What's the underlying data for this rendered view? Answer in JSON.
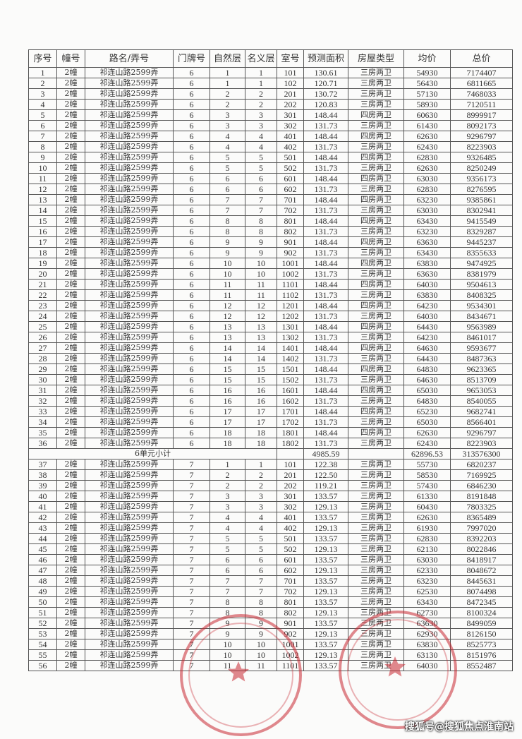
{
  "headers": [
    "序号",
    "幢号",
    "路名/弄号",
    "门牌号",
    "自然层",
    "名义层",
    "室号",
    "预测面积",
    "房屋类型",
    "均价",
    "总价"
  ],
  "rows_unit6": [
    [
      "1",
      "2幢",
      "祁连山路2599弄",
      "6",
      "1",
      "1",
      "101",
      "130.61",
      "三房两卫",
      "54930",
      "7174407"
    ],
    [
      "2",
      "2幢",
      "祁连山路2599弄",
      "6",
      "1",
      "1",
      "102",
      "120.71",
      "三房两卫",
      "56430",
      "6811665"
    ],
    [
      "3",
      "2幢",
      "祁连山路2599弄",
      "6",
      "2",
      "2",
      "201",
      "130.72",
      "三房两卫",
      "57130",
      "7468033"
    ],
    [
      "4",
      "2幢",
      "祁连山路2599弄",
      "6",
      "2",
      "2",
      "202",
      "120.83",
      "三房两卫",
      "58930",
      "7120511"
    ],
    [
      "5",
      "2幢",
      "祁连山路2599弄",
      "6",
      "3",
      "3",
      "301",
      "148.44",
      "四房两卫",
      "60630",
      "8999917"
    ],
    [
      "6",
      "2幢",
      "祁连山路2599弄",
      "6",
      "3",
      "3",
      "302",
      "131.73",
      "三房两卫",
      "61430",
      "8092173"
    ],
    [
      "7",
      "2幢",
      "祁连山路2599弄",
      "6",
      "4",
      "4",
      "401",
      "148.44",
      "四房两卫",
      "62630",
      "9296797"
    ],
    [
      "8",
      "2幢",
      "祁连山路2599弄",
      "6",
      "4",
      "4",
      "402",
      "131.73",
      "三房两卫",
      "62430",
      "8223903"
    ],
    [
      "9",
      "2幢",
      "祁连山路2599弄",
      "6",
      "5",
      "5",
      "501",
      "148.44",
      "四房两卫",
      "62830",
      "9326485"
    ],
    [
      "10",
      "2幢",
      "祁连山路2599弄",
      "6",
      "5",
      "5",
      "502",
      "131.73",
      "三房两卫",
      "62630",
      "8250249"
    ],
    [
      "11",
      "2幢",
      "祁连山路2599弄",
      "6",
      "6",
      "6",
      "601",
      "148.44",
      "四房两卫",
      "63030",
      "9356173"
    ],
    [
      "12",
      "2幢",
      "祁连山路2599弄",
      "6",
      "6",
      "6",
      "602",
      "131.73",
      "三房两卫",
      "62830",
      "8276595"
    ],
    [
      "13",
      "2幢",
      "祁连山路2599弄",
      "6",
      "7",
      "7",
      "701",
      "148.44",
      "四房两卫",
      "63230",
      "9385861"
    ],
    [
      "14",
      "2幢",
      "祁连山路2599弄",
      "6",
      "7",
      "7",
      "702",
      "131.73",
      "三房两卫",
      "63030",
      "8302941"
    ],
    [
      "15",
      "2幢",
      "祁连山路2599弄",
      "6",
      "8",
      "8",
      "801",
      "148.44",
      "四房两卫",
      "63430",
      "9415549"
    ],
    [
      "16",
      "2幢",
      "祁连山路2599弄",
      "6",
      "8",
      "8",
      "802",
      "131.73",
      "三房两卫",
      "63230",
      "8329287"
    ],
    [
      "17",
      "2幢",
      "祁连山路2599弄",
      "6",
      "9",
      "9",
      "901",
      "148.44",
      "四房两卫",
      "63630",
      "9445237"
    ],
    [
      "18",
      "2幢",
      "祁连山路2599弄",
      "6",
      "9",
      "9",
      "902",
      "131.73",
      "三房两卫",
      "63430",
      "8355633"
    ],
    [
      "19",
      "2幢",
      "祁连山路2599弄",
      "6",
      "10",
      "10",
      "1001",
      "148.44",
      "四房两卫",
      "63830",
      "9474925"
    ],
    [
      "20",
      "2幢",
      "祁连山路2599弄",
      "6",
      "10",
      "10",
      "1002",
      "131.73",
      "三房两卫",
      "63630",
      "8381979"
    ],
    [
      "21",
      "2幢",
      "祁连山路2599弄",
      "6",
      "11",
      "11",
      "1101",
      "148.44",
      "四房两卫",
      "64030",
      "9504613"
    ],
    [
      "22",
      "2幢",
      "祁连山路2599弄",
      "6",
      "11",
      "11",
      "1102",
      "131.73",
      "三房两卫",
      "63830",
      "8408325"
    ],
    [
      "23",
      "2幢",
      "祁连山路2599弄",
      "6",
      "12",
      "12",
      "1201",
      "148.44",
      "四房两卫",
      "64230",
      "9534301"
    ],
    [
      "24",
      "2幢",
      "祁连山路2599弄",
      "6",
      "12",
      "12",
      "1202",
      "131.73",
      "三房两卫",
      "64030",
      "8434671"
    ],
    [
      "25",
      "2幢",
      "祁连山路2599弄",
      "6",
      "13",
      "13",
      "1301",
      "148.44",
      "四房两卫",
      "64430",
      "9563989"
    ],
    [
      "26",
      "2幢",
      "祁连山路2599弄",
      "6",
      "13",
      "13",
      "1302",
      "131.73",
      "三房两卫",
      "64230",
      "8461017"
    ],
    [
      "27",
      "2幢",
      "祁连山路2599弄",
      "6",
      "14",
      "14",
      "1401",
      "148.44",
      "四房两卫",
      "64630",
      "9593677"
    ],
    [
      "28",
      "2幢",
      "祁连山路2599弄",
      "6",
      "14",
      "14",
      "1402",
      "131.73",
      "三房两卫",
      "64430",
      "8487363"
    ],
    [
      "29",
      "2幢",
      "祁连山路2599弄",
      "6",
      "15",
      "15",
      "1501",
      "148.44",
      "四房两卫",
      "64830",
      "9623365"
    ],
    [
      "30",
      "2幢",
      "祁连山路2599弄",
      "6",
      "15",
      "15",
      "1502",
      "131.73",
      "三房两卫",
      "64630",
      "8513709"
    ],
    [
      "31",
      "2幢",
      "祁连山路2599弄",
      "6",
      "16",
      "16",
      "1601",
      "148.44",
      "四房两卫",
      "65030",
      "9653053"
    ],
    [
      "32",
      "2幢",
      "祁连山路2599弄",
      "6",
      "16",
      "16",
      "1602",
      "131.73",
      "三房两卫",
      "64830",
      "8540055"
    ],
    [
      "33",
      "2幢",
      "祁连山路2599弄",
      "6",
      "17",
      "17",
      "1701",
      "148.44",
      "四房两卫",
      "65230",
      "9682741"
    ],
    [
      "34",
      "2幢",
      "祁连山路2599弄",
      "6",
      "17",
      "17",
      "1702",
      "131.73",
      "三房两卫",
      "65030",
      "8566401"
    ],
    [
      "35",
      "2幢",
      "祁连山路2599弄",
      "6",
      "18",
      "18",
      "1801",
      "148.44",
      "四房两卫",
      "62630",
      "9296797"
    ],
    [
      "36",
      "2幢",
      "祁连山路2599弄",
      "6",
      "18",
      "18",
      "1802",
      "131.73",
      "三房两卫",
      "62430",
      "8223903"
    ]
  ],
  "subtotal": {
    "label": "6单元小计",
    "area": "4985.59",
    "avg_price": "62896.53",
    "total_price": "313576300"
  },
  "rows_unit7": [
    [
      "37",
      "2幢",
      "祁连山路2599弄",
      "7",
      "1",
      "1",
      "101",
      "122.38",
      "三房两卫",
      "55730",
      "6820237"
    ],
    [
      "38",
      "2幢",
      "祁连山路2599弄",
      "7",
      "2",
      "2",
      "201",
      "122.50",
      "三房两卫",
      "58530",
      "7169925"
    ],
    [
      "39",
      "2幢",
      "祁连山路2599弄",
      "7",
      "2",
      "2",
      "202",
      "119.21",
      "三房两卫",
      "57430",
      "6846230"
    ],
    [
      "40",
      "2幢",
      "祁连山路2599弄",
      "7",
      "3",
      "3",
      "301",
      "133.57",
      "三房两卫",
      "61330",
      "8191848"
    ],
    [
      "41",
      "2幢",
      "祁连山路2599弄",
      "7",
      "3",
      "3",
      "302",
      "129.13",
      "三房两卫",
      "60430",
      "7803325"
    ],
    [
      "42",
      "2幢",
      "祁连山路2599弄",
      "7",
      "4",
      "4",
      "401",
      "133.57",
      "三房两卫",
      "62630",
      "8365489"
    ],
    [
      "43",
      "2幢",
      "祁连山路2599弄",
      "7",
      "4",
      "4",
      "402",
      "129.13",
      "三房两卫",
      "61930",
      "7997020"
    ],
    [
      "44",
      "2幢",
      "祁连山路2599弄",
      "7",
      "5",
      "5",
      "501",
      "133.57",
      "三房两卫",
      "62830",
      "8392203"
    ],
    [
      "45",
      "2幢",
      "祁连山路2599弄",
      "7",
      "5",
      "5",
      "502",
      "129.13",
      "三房两卫",
      "62130",
      "8022846"
    ],
    [
      "46",
      "2幢",
      "祁连山路2599弄",
      "7",
      "6",
      "6",
      "601",
      "133.57",
      "三房两卫",
      "63030",
      "8418917"
    ],
    [
      "47",
      "2幢",
      "祁连山路2599弄",
      "7",
      "6",
      "6",
      "602",
      "129.13",
      "三房两卫",
      "62330",
      "8048672"
    ],
    [
      "48",
      "2幢",
      "祁连山路2599弄",
      "7",
      "7",
      "7",
      "701",
      "133.57",
      "三房两卫",
      "63230",
      "8445631"
    ],
    [
      "49",
      "2幢",
      "祁连山路2599弄",
      "7",
      "7",
      "7",
      "702",
      "129.13",
      "三房两卫",
      "62530",
      "8074498"
    ],
    [
      "50",
      "2幢",
      "祁连山路2599弄",
      "7",
      "8",
      "8",
      "801",
      "133.57",
      "三房两卫",
      "63430",
      "8472345"
    ],
    [
      "51",
      "2幢",
      "祁连山路2599弄",
      "7",
      "8",
      "8",
      "802",
      "129.13",
      "三房两卫",
      "62730",
      "8100324"
    ],
    [
      "52",
      "2幢",
      "祁连山路2599弄",
      "7",
      "9",
      "9",
      "901",
      "133.57",
      "三房两卫",
      "63630",
      "8499059"
    ],
    [
      "53",
      "2幢",
      "祁连山路2599弄",
      "7",
      "9",
      "9",
      "902",
      "129.13",
      "三房两卫",
      "62930",
      "8126150"
    ],
    [
      "54",
      "2幢",
      "祁连山路2599弄",
      "7",
      "10",
      "10",
      "1001",
      "133.57",
      "三房两卫",
      "63830",
      "8525773"
    ],
    [
      "55",
      "2幢",
      "祁连山路2599弄",
      "7",
      "10",
      "10",
      "1002",
      "129.13",
      "三房两卫",
      "63130",
      "8151976"
    ],
    [
      "56",
      "2幢",
      "祁连山路2599弄",
      "7",
      "11",
      "11",
      "1101",
      "133.57",
      "三房两卫",
      "64030",
      "8552487"
    ]
  ],
  "watermark": "搜狐号@搜狐焦点淮南站",
  "colors": {
    "stamp": "#c82832",
    "border": "#555555"
  }
}
